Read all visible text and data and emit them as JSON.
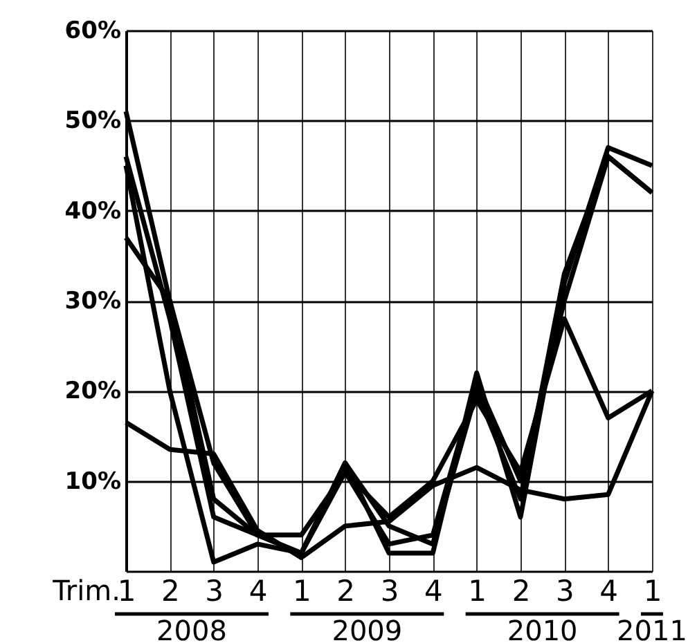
{
  "chart_data": {
    "type": "line",
    "categories": [
      "1",
      "2",
      "3",
      "4",
      "1",
      "2",
      "3",
      "4",
      "1",
      "2",
      "3",
      "4",
      "1"
    ],
    "series": [
      {
        "color": "#000000",
        "values": [
          51,
          30,
          8,
          4,
          2,
          12,
          2,
          2,
          22,
          6,
          32,
          47,
          45
        ]
      },
      {
        "color": "#000000",
        "values": [
          46,
          28,
          6,
          4,
          2,
          12,
          5,
          3,
          20,
          8,
          33,
          46,
          42
        ]
      },
      {
        "color": "#000000",
        "values": [
          37,
          30,
          12,
          4,
          4,
          11,
          6,
          10,
          19,
          11,
          28,
          17,
          20
        ]
      },
      {
        "color": "#000000",
        "values": [
          45,
          20,
          1,
          3,
          2,
          11,
          3,
          4,
          21,
          10,
          30,
          46,
          42
        ]
      },
      {
        "color": "#000000",
        "values": [
          16.5,
          13.5,
          13,
          4.5,
          1.5,
          5,
          5.5,
          9.5,
          11.5,
          9,
          8,
          8.5,
          20
        ]
      }
    ],
    "ylim": [
      0,
      60
    ],
    "yticks": [
      {
        "value": 0,
        "label": null
      },
      {
        "value": 10,
        "label": "10%"
      },
      {
        "value": 20,
        "label": "20%"
      },
      {
        "value": 30,
        "label": "30%"
      },
      {
        "value": 40,
        "label": "40%"
      },
      {
        "value": 50,
        "label": "50%"
      },
      {
        "value": 60,
        "label": "60%"
      }
    ],
    "grid": true,
    "line_style": "solid",
    "annotations": [
      "Trim.",
      "2008",
      "2009",
      "2010",
      "2011"
    ]
  }
}
